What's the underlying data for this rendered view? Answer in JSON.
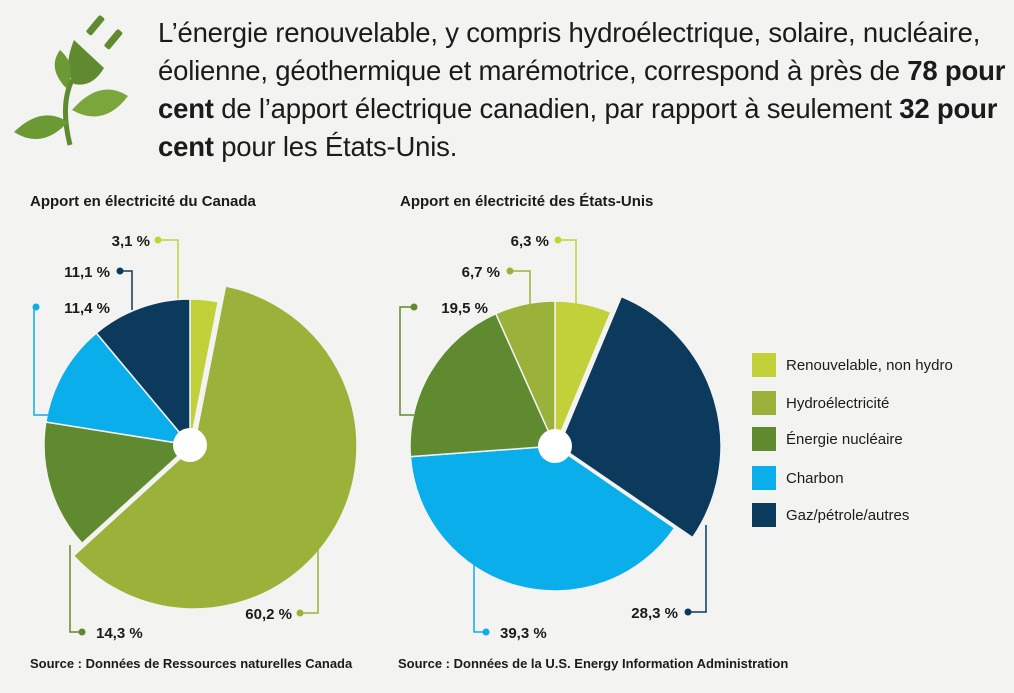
{
  "headline": {
    "part1": "L’énergie renouvelable, y compris hydroélectrique, solaire, nucléaire, éolienne, géothermique et marémotrice, correspond à près de ",
    "highlight1": "78 pour cent",
    "part2": " de l’apport électrique canadien, par rapport à seulement ",
    "highlight2": "32 pour cent",
    "part3": " pour les États-Unis."
  },
  "logo_icon": "plug-plant-icon",
  "colors": {
    "renouvelable": "#c2d13a",
    "hydro": "#9bb23a",
    "nucleaire": "#5f8a2f",
    "charbon": "#0aaeea",
    "gaz": "#0c3a5c"
  },
  "legend": [
    {
      "key": "renouvelable",
      "label": "Renouvelable, non hydro"
    },
    {
      "key": "hydro",
      "label": "Hydroélectricité"
    },
    {
      "key": "nucleaire",
      "label": "Énergie nucléaire"
    },
    {
      "key": "charbon",
      "label": "Charbon"
    },
    {
      "key": "gaz",
      "label": "Gaz/pétrole/autres"
    }
  ],
  "chart_data": [
    {
      "type": "pie",
      "title": "Apport en électricité du Canada",
      "source": "Source : Données de Ressources naturelles Canada",
      "slices": [
        {
          "key": "renouvelable",
          "value": 3.1,
          "label": "3,1 %",
          "exploded": false
        },
        {
          "key": "hydro",
          "value": 60.2,
          "label": "60,2 %",
          "exploded": true
        },
        {
          "key": "nucleaire",
          "value": 14.3,
          "label": "14,3 %",
          "exploded": false
        },
        {
          "key": "charbon",
          "value": 11.4,
          "label": "11,4 %",
          "exploded": false
        },
        {
          "key": "gaz",
          "value": 11.1,
          "label": "11,1 %",
          "exploded": false
        }
      ]
    },
    {
      "type": "pie",
      "title": "Apport en électricité des États-Unis",
      "source": "Source : Données de la U.S. Energy Information Administration",
      "slices": [
        {
          "key": "renouvelable",
          "value": 6.3,
          "label": "6,3 %",
          "exploded": false
        },
        {
          "key": "gaz",
          "value": 28.3,
          "label": "28,3 %",
          "exploded": true
        },
        {
          "key": "charbon",
          "value": 39.3,
          "label": "39,3 %",
          "exploded": false
        },
        {
          "key": "nucleaire",
          "value": 19.5,
          "label": "19,5 %",
          "exploded": false
        },
        {
          "key": "hydro",
          "value": 6.7,
          "label": "6,7 %",
          "exploded": false
        }
      ]
    }
  ]
}
